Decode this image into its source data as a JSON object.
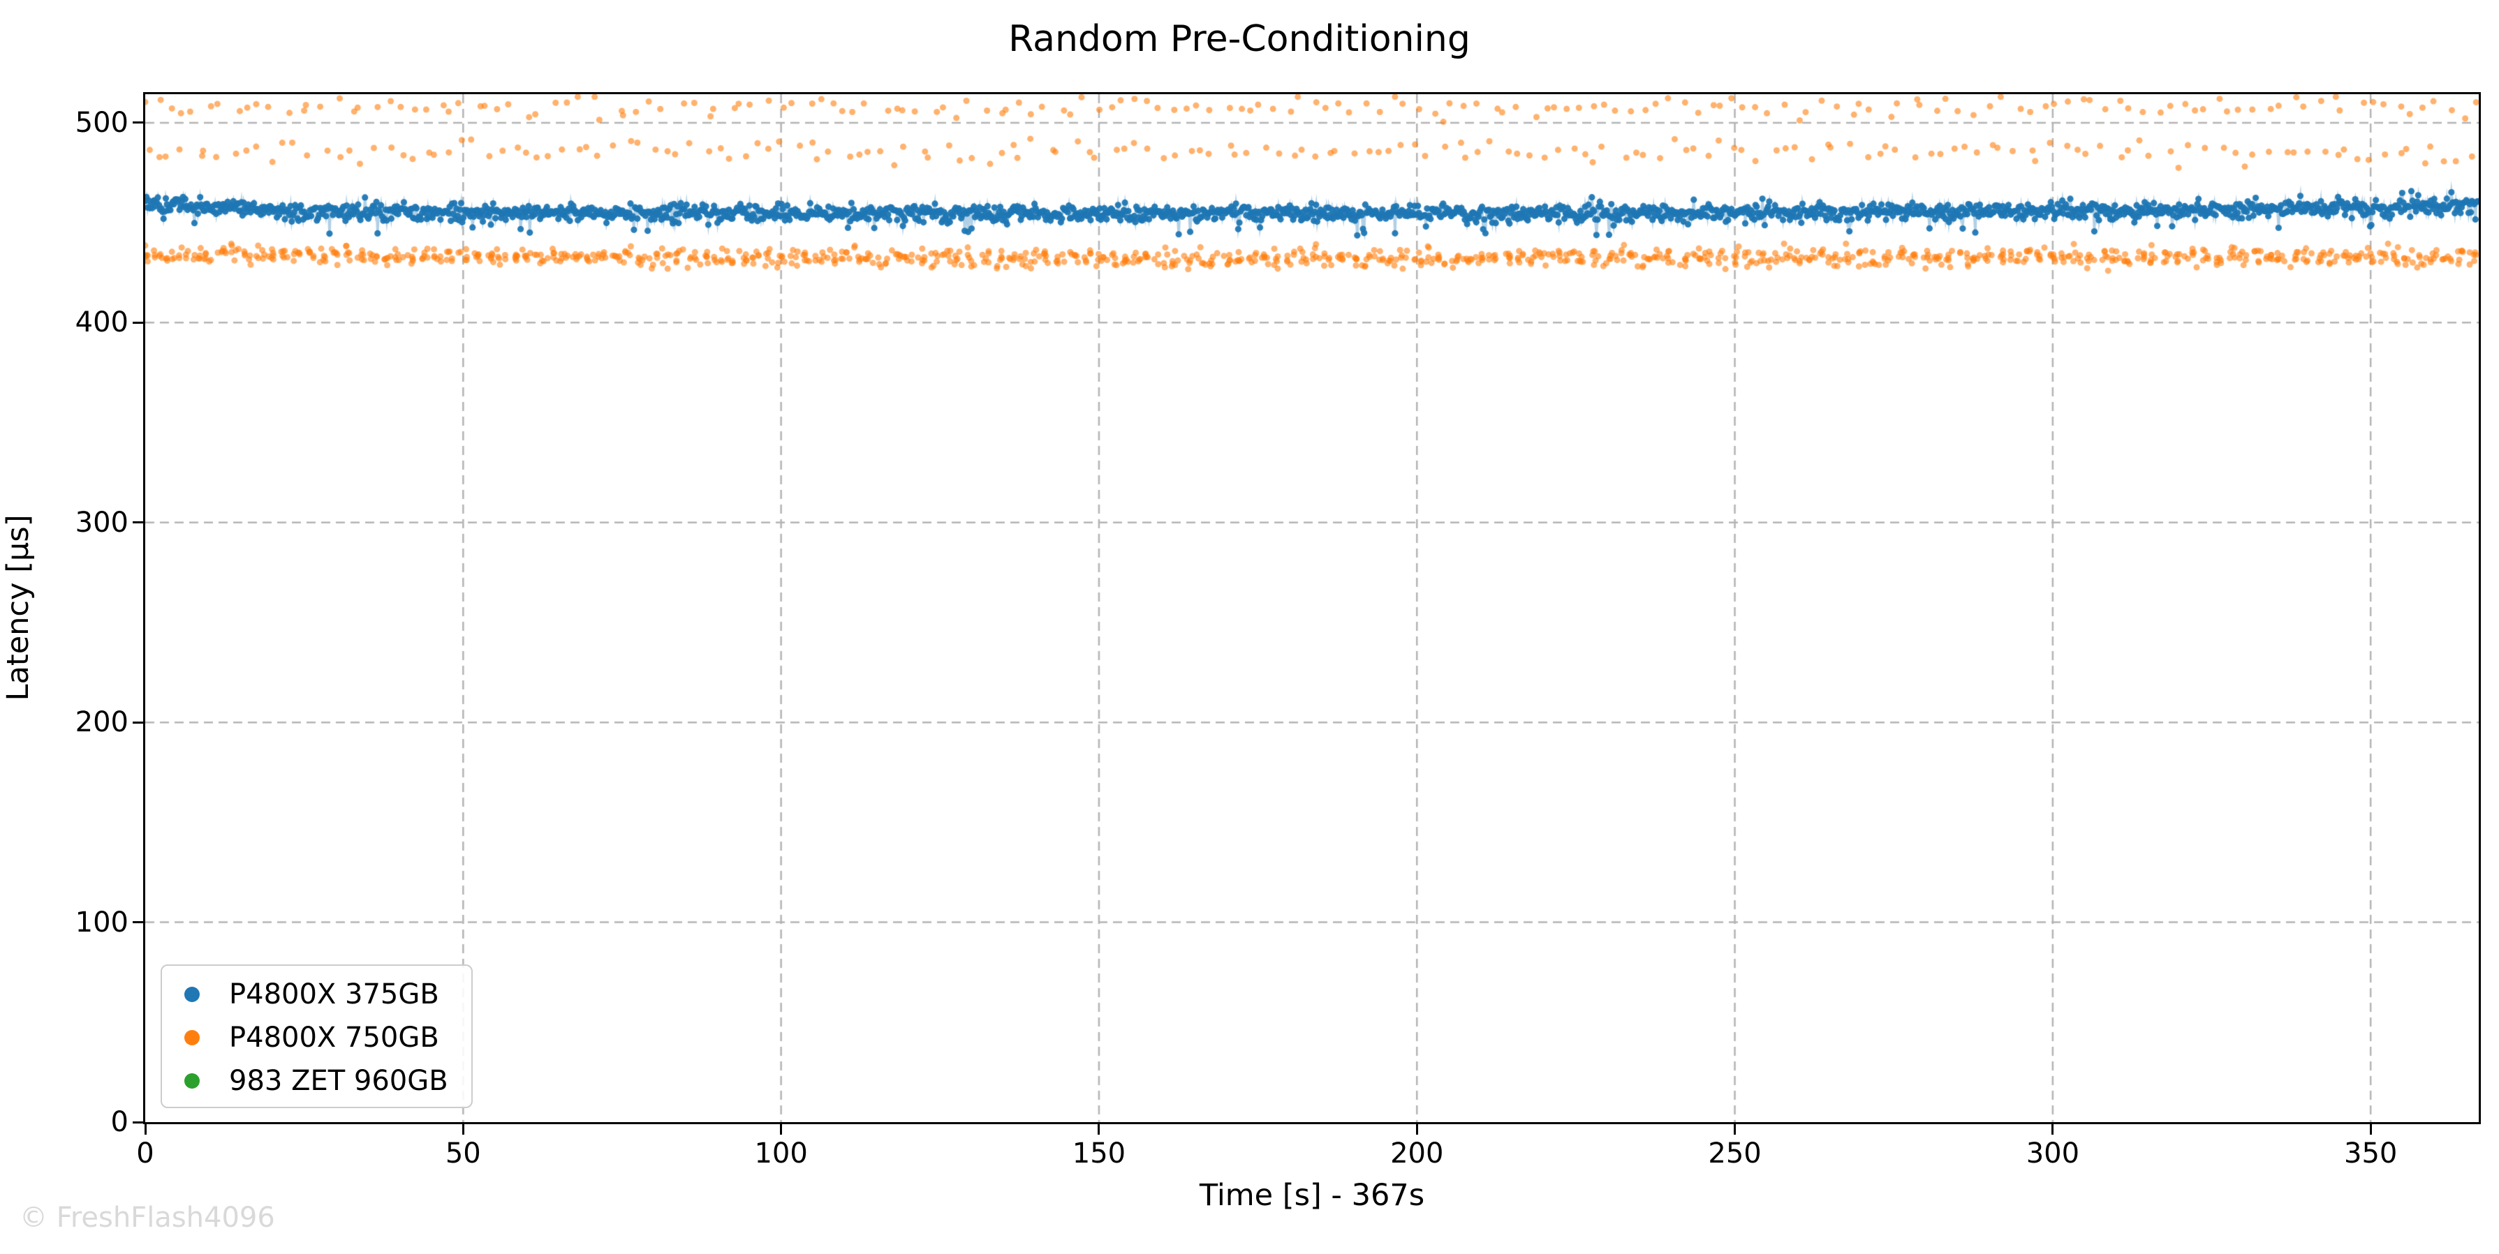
{
  "watermark": "© FreshFlash4096",
  "chart_data": {
    "type": "scatter",
    "title": "Random Pre-Conditioning",
    "xlabel": "Time [s] - 367s",
    "ylabel": "Latency [μs]",
    "xlim": [
      0,
      367
    ],
    "ylim": [
      0,
      514.3
    ],
    "xticks": [
      0,
      50,
      100,
      150,
      200,
      250,
      300,
      350
    ],
    "yticks": [
      0,
      100,
      200,
      300,
      400,
      500
    ],
    "grid": true,
    "gridline_color": "#b4b4b4",
    "background": "#ffffff",
    "legend": {
      "position": "lower-left",
      "items": [
        {
          "label": "P4800X 375GB",
          "color": "#1f77b4"
        },
        {
          "label": "P4800X 750GB",
          "color": "#ff7f0e"
        },
        {
          "label": "983 ZET 960GB",
          "color": "#2ca02c"
        }
      ]
    },
    "prng_seed": 1337,
    "series": [
      {
        "name": "P4800X 375GB",
        "color": "#1f77b4",
        "style": "line+markers",
        "line_alpha": 0.35,
        "marker_alpha": 0.95,
        "marker_radius": 4.6,
        "approx_mean_us": 455,
        "sampling": {
          "t_start": 0,
          "t_end": 367,
          "dt": 0.18
        },
        "trend_points": [
          [
            0,
            459.5
          ],
          [
            25,
            455.5
          ],
          [
            120,
            454.3
          ],
          [
            240,
            454.8
          ],
          [
            320,
            456.2
          ],
          [
            367,
            458.3
          ]
        ],
        "noise_std": 2.0,
        "outliers": {
          "fraction": 0.04,
          "down_weight": 0.65,
          "down_range": [
            4,
            11
          ],
          "up_range": [
            3,
            8
          ]
        }
      },
      {
        "name": "P4800X 750GB",
        "color": "#ff7f0e",
        "style": "markers",
        "marker_alpha": 0.6,
        "marker_radius": 4.5,
        "bands": [
          {
            "name": "main",
            "approx_mean_us": 433,
            "period_s": 2.0,
            "points_per_period": 6,
            "x_jitter_s": 0.75,
            "center_points": [
              [
                0,
                434
              ],
              [
                150,
                432
              ],
              [
                367,
                433
              ]
            ],
            "std": 2.2,
            "clip": [
              426,
              439.5
            ]
          },
          {
            "name": "spike-mid",
            "approx_mean_us": 485,
            "period_s": 2.0,
            "points_per_period": 1,
            "x_jitter_s": 1.0,
            "center_points": [
              [
                0,
                485.5
              ],
              [
                367,
                485.5
              ]
            ],
            "std": 2.8,
            "clip": [
              477,
              494
            ]
          },
          {
            "name": "spike-top",
            "approx_mean_us": 508,
            "period_s": 2.0,
            "points_per_period": 1,
            "x_jitter_s": 1.0,
            "center_points": [
              [
                0,
                508
              ],
              [
                367,
                508
              ]
            ],
            "std": 2.6,
            "clip": [
              498,
              513
            ]
          }
        ]
      },
      {
        "name": "983 ZET 960GB",
        "color": "#2ca02c",
        "style": "markers",
        "marker_alpha": 0.9,
        "marker_radius": 4.5,
        "visible_points": 0,
        "bands": []
      }
    ]
  }
}
